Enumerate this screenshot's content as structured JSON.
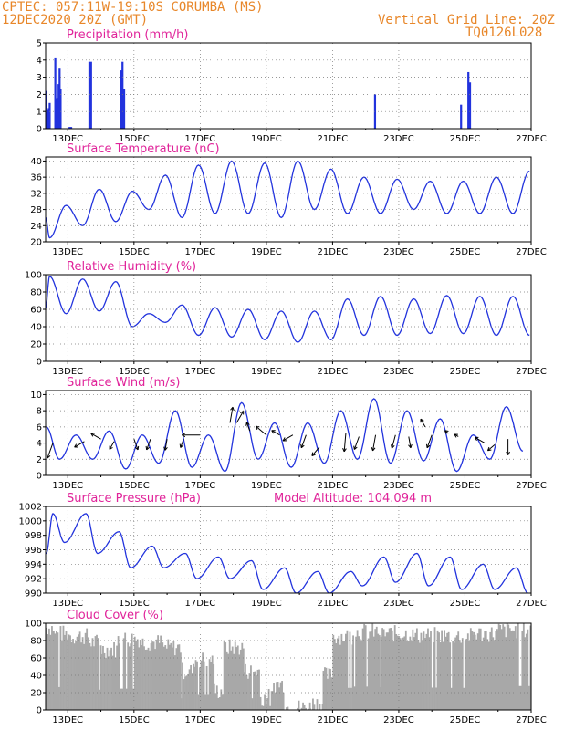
{
  "header": {
    "line1": "CPTEC:   057:11W-19:10S   CORUMBA (MS)",
    "line2": "12DEC2020 20Z (GMT)",
    "right1": "Vertical Grid Line: 20Z",
    "right2": "TQ0126L028"
  },
  "colors": {
    "header": "#e8872a",
    "title": "#e0249a",
    "line": "#2233dd",
    "bar": "#2233dd",
    "cloud": "#a8a8a8",
    "arrow": "#000000"
  },
  "x_axis": {
    "ticks": [
      "13DEC",
      "15DEC",
      "17DEC",
      "19DEC",
      "21DEC",
      "23DEC",
      "25DEC",
      "27DEC"
    ],
    "tick_days": [
      13,
      15,
      17,
      19,
      21,
      23,
      25,
      27
    ],
    "range_days": [
      12.33,
      27.0
    ]
  },
  "chart_data": [
    {
      "type": "bar",
      "title": "Precipitation (mm/h)",
      "ylim": [
        0,
        5
      ],
      "yticks": [
        0,
        1,
        2,
        3,
        4,
        5
      ],
      "x": [
        12.35,
        12.38,
        12.42,
        12.45,
        12.62,
        12.65,
        12.68,
        12.72,
        12.75,
        12.78,
        13.05,
        13.1,
        13.65,
        13.7,
        14.6,
        14.65,
        14.7,
        22.28,
        24.88,
        25.1,
        25.15
      ],
      "values": [
        2.2,
        1.1,
        1.2,
        1.5,
        4.1,
        1.7,
        1.8,
        2.6,
        3.5,
        2.3,
        0.1,
        0.1,
        3.9,
        3.9,
        3.4,
        3.9,
        2.3,
        2.0,
        1.4,
        3.3,
        2.7
      ]
    },
    {
      "type": "line",
      "title": "Surface Temperature (nC)",
      "ylim": [
        20,
        41
      ],
      "yticks": [
        20,
        24,
        28,
        32,
        36,
        40
      ],
      "trough_times": [
        12.45,
        13.45,
        14.45,
        15.45,
        16.45,
        17.45,
        18.45,
        19.45,
        20.45,
        21.45,
        22.45,
        23.45,
        24.45,
        25.45,
        26.45
      ],
      "trough_values": [
        21,
        24,
        25,
        28,
        26,
        27,
        27,
        26,
        28,
        27,
        27,
        28,
        27,
        27,
        27
      ],
      "peak_times": [
        12.95,
        13.95,
        14.95,
        15.95,
        16.95,
        17.95,
        18.95,
        19.95,
        20.95,
        21.95,
        22.95,
        23.95,
        24.95,
        25.95,
        26.95
      ],
      "peak_values": [
        29,
        33,
        32.5,
        36.5,
        39,
        40,
        39.5,
        40,
        38,
        36,
        35.5,
        35,
        35,
        36,
        37.5
      ],
      "start_value": 26
    },
    {
      "type": "line",
      "title": "Relative Humidity (%)",
      "ylim": [
        0,
        100
      ],
      "yticks": [
        0,
        20,
        40,
        60,
        80,
        100
      ],
      "trough_times": [
        12.95,
        13.95,
        14.95,
        15.95,
        16.95,
        17.95,
        18.95,
        19.95,
        20.95,
        21.95,
        22.95,
        23.95,
        24.95,
        25.95,
        26.95
      ],
      "trough_values": [
        55,
        58,
        40,
        45,
        30,
        28,
        25,
        22,
        25,
        30,
        30,
        32,
        32,
        30,
        30
      ],
      "peak_times": [
        12.45,
        13.45,
        14.45,
        15.45,
        16.45,
        17.45,
        18.45,
        19.45,
        20.45,
        21.45,
        22.45,
        23.45,
        24.45,
        25.45,
        26.45
      ],
      "peak_values": [
        98,
        95,
        92,
        55,
        65,
        62,
        60,
        58,
        58,
        72,
        75,
        72,
        76,
        75,
        75
      ],
      "start_value": 62
    },
    {
      "type": "line",
      "title": "Surface Wind (m/s)",
      "ylim": [
        0,
        10.5
      ],
      "yticks": [
        0,
        2,
        4,
        6,
        8,
        10
      ],
      "trough_times": [
        12.75,
        13.75,
        14.75,
        15.75,
        16.75,
        17.75,
        18.75,
        19.75,
        20.75,
        21.75,
        22.75,
        23.75,
        24.75,
        25.75,
        26.75
      ],
      "trough_values": [
        2,
        2,
        0.8,
        1.5,
        1,
        0.5,
        2,
        1,
        1.5,
        2,
        1.5,
        1.8,
        0.5,
        2,
        3
      ],
      "peak_times": [
        12.35,
        13.25,
        14.25,
        15.25,
        16.25,
        17.25,
        18.25,
        19.25,
        20.25,
        21.25,
        22.25,
        23.25,
        24.25,
        25.25,
        26.25
      ],
      "peak_values": [
        6,
        5,
        5.5,
        5,
        8,
        5,
        9,
        6.5,
        6.5,
        8,
        9.5,
        8,
        7,
        5,
        8.5
      ],
      "start_value": 6,
      "arrows": [
        {
          "x": 12.55,
          "y": 4,
          "dir": 200,
          "len": 3.5
        },
        {
          "x": 13.5,
          "y": 4.2,
          "dir": 240,
          "len": 2.5
        },
        {
          "x": 14.0,
          "y": 4.5,
          "dir": 300,
          "len": 2.5
        },
        {
          "x": 14.4,
          "y": 4.2,
          "dir": 210,
          "len": 2
        },
        {
          "x": 15.0,
          "y": 4.5,
          "dir": 160,
          "len": 2.5
        },
        {
          "x": 15.5,
          "y": 4.5,
          "dir": 200,
          "len": 2.5
        },
        {
          "x": 16.0,
          "y": 4.5,
          "dir": 190,
          "len": 2.5
        },
        {
          "x": 16.5,
          "y": 4.5,
          "dir": 200,
          "len": 2
        },
        {
          "x": 17.0,
          "y": 5,
          "dir": 270,
          "len": 4
        },
        {
          "x": 17.9,
          "y": 6.5,
          "dir": 10,
          "len": 3.5
        },
        {
          "x": 18.1,
          "y": 6.5,
          "dir": 30,
          "len": 3
        },
        {
          "x": 18.5,
          "y": 5.5,
          "dir": 340,
          "len": 2
        },
        {
          "x": 19.0,
          "y": 5,
          "dir": 310,
          "len": 3
        },
        {
          "x": 19.4,
          "y": 5,
          "dir": 300,
          "len": 2
        },
        {
          "x": 19.8,
          "y": 5,
          "dir": 240,
          "len": 2.5
        },
        {
          "x": 20.2,
          "y": 5,
          "dir": 200,
          "len": 3
        },
        {
          "x": 20.6,
          "y": 3.5,
          "dir": 220,
          "len": 2.5
        },
        {
          "x": 21.4,
          "y": 5.2,
          "dir": 185,
          "len": 4
        },
        {
          "x": 21.8,
          "y": 4.8,
          "dir": 200,
          "len": 3
        },
        {
          "x": 22.3,
          "y": 5,
          "dir": 190,
          "len": 3.5
        },
        {
          "x": 22.9,
          "y": 5,
          "dir": 195,
          "len": 3
        },
        {
          "x": 23.3,
          "y": 4.8,
          "dir": 170,
          "len": 2.5
        },
        {
          "x": 23.8,
          "y": 6,
          "dir": 330,
          "len": 2
        },
        {
          "x": 24.0,
          "y": 5,
          "dir": 200,
          "len": 3
        },
        {
          "x": 24.5,
          "y": 5.2,
          "dir": 310,
          "len": 1
        },
        {
          "x": 24.8,
          "y": 4.8,
          "dir": 300,
          "len": 1
        },
        {
          "x": 25.6,
          "y": 4,
          "dir": 300,
          "len": 2.5
        },
        {
          "x": 25.9,
          "y": 3.8,
          "dir": 230,
          "len": 2
        },
        {
          "x": 26.3,
          "y": 4.5,
          "dir": 180,
          "len": 3.5
        }
      ]
    },
    {
      "type": "line",
      "title": "Surface Pressure (hPa)",
      "annotation": "Model Altitude: 104.094 m",
      "ylim": [
        990,
        1002
      ],
      "yticks": [
        990,
        992,
        994,
        996,
        998,
        1000,
        1002
      ],
      "trough_times": [
        12.35,
        12.9,
        13.9,
        14.9,
        15.9,
        16.9,
        17.9,
        18.9,
        19.9,
        20.9,
        21.9,
        22.9,
        23.9,
        24.9,
        25.9,
        26.9
      ],
      "trough_values": [
        995.5,
        997,
        995.5,
        993.5,
        993.5,
        992,
        992,
        990.5,
        990,
        990,
        991,
        991.5,
        991,
        990.5,
        990.5,
        990
      ],
      "peak_times": [
        12.55,
        13.55,
        14.55,
        15.55,
        16.55,
        17.55,
        18.55,
        19.55,
        20.55,
        21.55,
        22.55,
        23.55,
        24.55,
        25.55,
        26.55
      ],
      "peak_values": [
        1001,
        1001,
        998.5,
        996.5,
        995.5,
        995,
        994.5,
        993.5,
        993,
        993,
        995,
        995.5,
        995,
        994,
        993.5
      ],
      "start_value": 995.5
    },
    {
      "type": "area",
      "title": "Cloud Cover (%)",
      "ylim": [
        0,
        100
      ],
      "yticks": [
        0,
        20,
        40,
        60,
        80,
        100
      ],
      "segments": [
        {
          "from": 12.33,
          "to": 12.55,
          "value": 95
        },
        {
          "from": 12.55,
          "to": 13.05,
          "value": 88
        },
        {
          "from": 13.05,
          "to": 13.6,
          "value": 85
        },
        {
          "from": 13.6,
          "to": 14.0,
          "value": 78
        },
        {
          "from": 14.0,
          "to": 14.5,
          "value": 70
        },
        {
          "from": 14.5,
          "to": 15.2,
          "value": 82
        },
        {
          "from": 15.2,
          "to": 15.8,
          "value": 78
        },
        {
          "from": 15.8,
          "to": 16.4,
          "value": 72
        },
        {
          "from": 16.4,
          "to": 16.8,
          "value": 45
        },
        {
          "from": 16.8,
          "to": 17.4,
          "value": 58
        },
        {
          "from": 17.4,
          "to": 17.7,
          "value": 22
        },
        {
          "from": 17.7,
          "to": 18.3,
          "value": 72
        },
        {
          "from": 18.3,
          "to": 18.8,
          "value": 45
        },
        {
          "from": 18.8,
          "to": 19.2,
          "value": 15
        },
        {
          "from": 19.2,
          "to": 19.5,
          "value": 30
        },
        {
          "from": 19.5,
          "to": 20.3,
          "value": 3
        },
        {
          "from": 20.3,
          "to": 20.7,
          "value": 8
        },
        {
          "from": 20.7,
          "to": 21.0,
          "value": 40
        },
        {
          "from": 21.0,
          "to": 21.6,
          "value": 85
        },
        {
          "from": 21.6,
          "to": 22.4,
          "value": 90
        },
        {
          "from": 22.4,
          "to": 23.4,
          "value": 88
        },
        {
          "from": 23.4,
          "to": 24.4,
          "value": 86
        },
        {
          "from": 24.4,
          "to": 25.2,
          "value": 85
        },
        {
          "from": 25.2,
          "to": 26.0,
          "value": 88
        },
        {
          "from": 26.0,
          "to": 27.0,
          "value": 92
        }
      ],
      "noise": 10
    }
  ]
}
